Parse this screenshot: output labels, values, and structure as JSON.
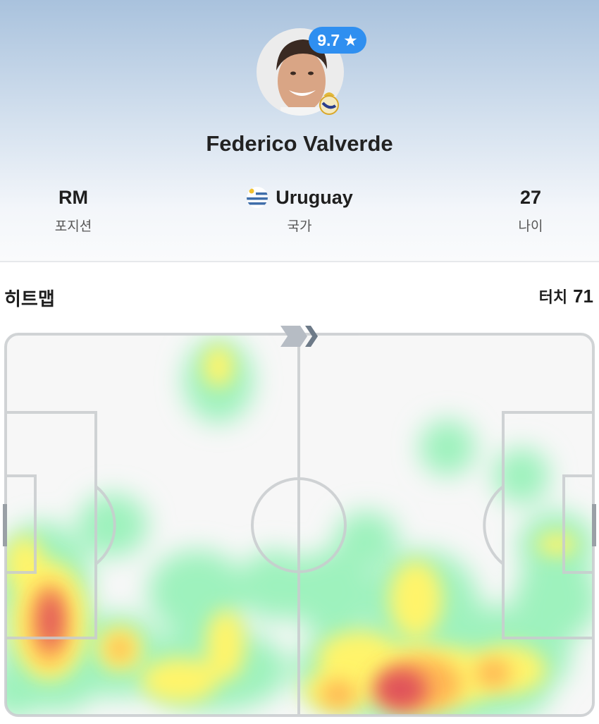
{
  "player": {
    "name": "Federico Valverde",
    "rating": "9.7",
    "rating_icon": "star-icon",
    "club_crest": "real-madrid-crest",
    "rating_color": "#2f8ff0"
  },
  "stats": [
    {
      "value": "RM",
      "label": "포지션"
    },
    {
      "value": "Uruguay",
      "label": "국가",
      "icon": "uruguay-flag-icon"
    },
    {
      "value": "27",
      "label": "나이"
    }
  ],
  "heatmap": {
    "title": "히트맵",
    "touch_label": "터치",
    "touch_count": "71",
    "attack_direction": "right"
  }
}
